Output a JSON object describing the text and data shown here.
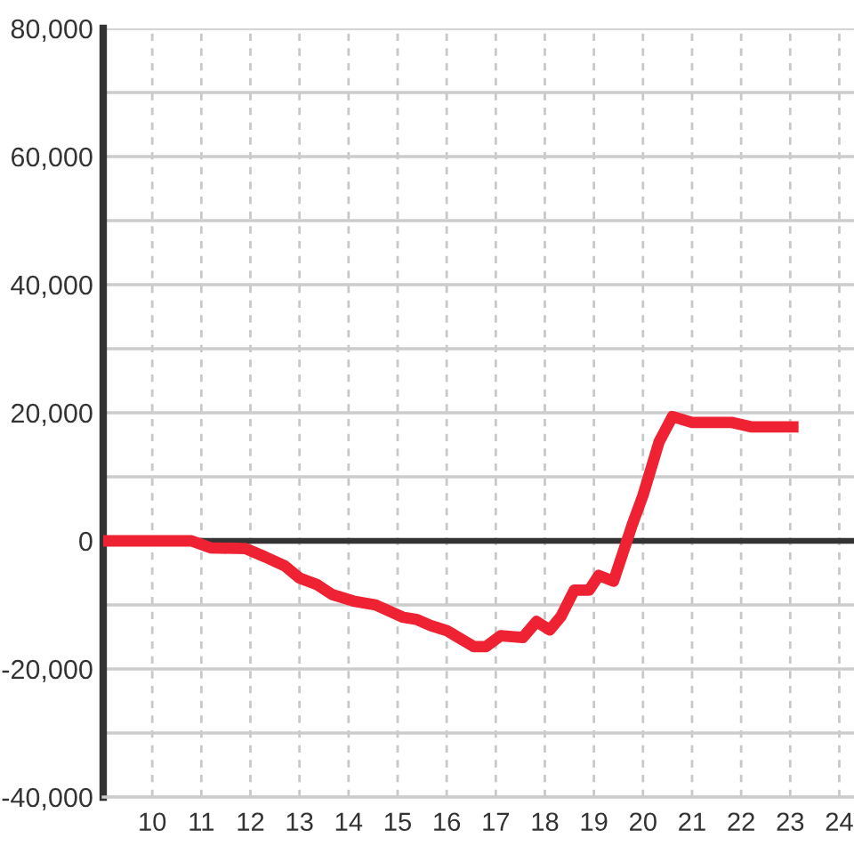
{
  "chart_data": {
    "type": "line",
    "x": [
      9.0,
      10.8,
      11.2,
      11.9,
      12.3,
      12.7,
      13.0,
      13.35,
      13.67,
      14.1,
      14.55,
      15.1,
      15.4,
      15.67,
      16.0,
      16.55,
      16.8,
      17.1,
      17.55,
      17.83,
      18.1,
      18.33,
      18.6,
      18.9,
      19.1,
      19.4,
      19.78,
      20.0,
      20.33,
      20.6,
      21.0,
      21.8,
      22.2,
      23.17
    ],
    "series": [
      {
        "color": "#ee2233",
        "values": [
          0,
          0,
          -1100,
          -1200,
          -2500,
          -3900,
          -5800,
          -6800,
          -8400,
          -9400,
          -10000,
          -11900,
          -12300,
          -13200,
          -14000,
          -16500,
          -16500,
          -14800,
          -15100,
          -12600,
          -13900,
          -11800,
          -7700,
          -7700,
          -5400,
          -6300,
          2500,
          7100,
          15500,
          19400,
          18500,
          18500,
          17800,
          17800
        ]
      }
    ],
    "xlim": [
      9,
      24.3
    ],
    "xticks": [
      10,
      11,
      12,
      13,
      14,
      15,
      16,
      17,
      18,
      19,
      20,
      21,
      22,
      23,
      24
    ],
    "ylim": [
      -40000,
      80000
    ],
    "yticks": [
      {
        "value": -40000,
        "label": "-40,000"
      },
      {
        "value": -30000,
        "label": null
      },
      {
        "value": -20000,
        "label": "-20,000"
      },
      {
        "value": -10000,
        "label": null
      },
      0,
      {
        "value": 10000,
        "label": null
      },
      {
        "value": 20000,
        "label": "20,000"
      },
      {
        "value": 30000,
        "label": null
      },
      {
        "value": 40000,
        "label": "40,000"
      },
      {
        "value": 50000,
        "label": null
      },
      {
        "value": 60000,
        "label": "60,000"
      },
      {
        "value": 70000,
        "label": null
      },
      {
        "value": 80000,
        "label": "80,000"
      }
    ],
    "grid": true,
    "ref_lines": [
      {
        "axis": "y",
        "value": 0,
        "color": "#333333"
      }
    ]
  }
}
